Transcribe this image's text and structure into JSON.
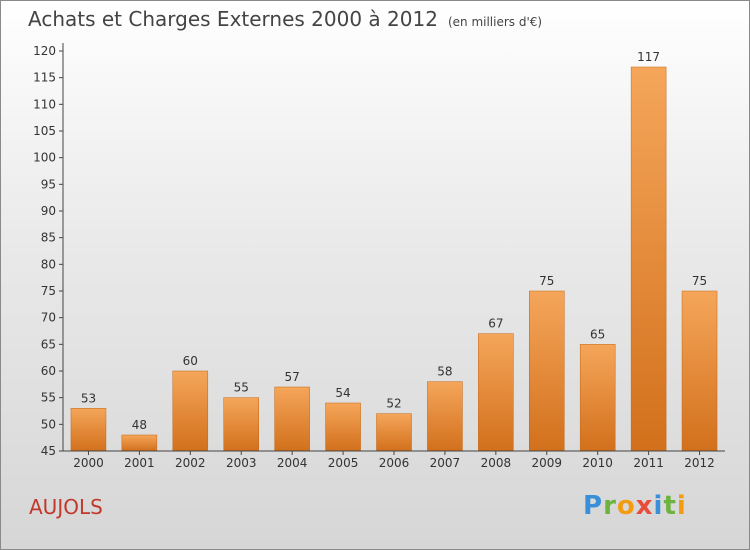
{
  "header": {
    "title": "Achats et Charges Externes 2000 à 2012",
    "unit": "(en milliers d'€)"
  },
  "commune": "AUJOLS",
  "logo": {
    "text": "Proxiti",
    "letters": [
      "P",
      "r",
      "o",
      "x",
      "i",
      "t",
      "i"
    ],
    "colors": [
      "#3a8fd9",
      "#6cb33f",
      "#f39c12",
      "#e74c3c",
      "#3a8fd9",
      "#6cb33f",
      "#f39c12"
    ]
  },
  "colors": {
    "bar_top": "#f5a65a",
    "bar_bottom": "#d2701c",
    "axis": "#444444",
    "grid": "#d8d8d8",
    "text": "#333333"
  },
  "chart_data": {
    "type": "bar",
    "title": "Achats et Charges Externes 2000 à 2012",
    "subtitle": "(en milliers d'€)",
    "categories": [
      "2000",
      "2001",
      "2002",
      "2003",
      "2004",
      "2005",
      "2006",
      "2007",
      "2008",
      "2009",
      "2010",
      "2011",
      "2012"
    ],
    "values": [
      53,
      48,
      60,
      55,
      57,
      54,
      52,
      58,
      67,
      75,
      65,
      117,
      75
    ],
    "ylim": [
      45,
      120
    ],
    "yticks": [
      45,
      50,
      55,
      60,
      65,
      70,
      75,
      80,
      85,
      90,
      95,
      100,
      105,
      110,
      115,
      120
    ],
    "grid": false,
    "data_labels": true
  }
}
